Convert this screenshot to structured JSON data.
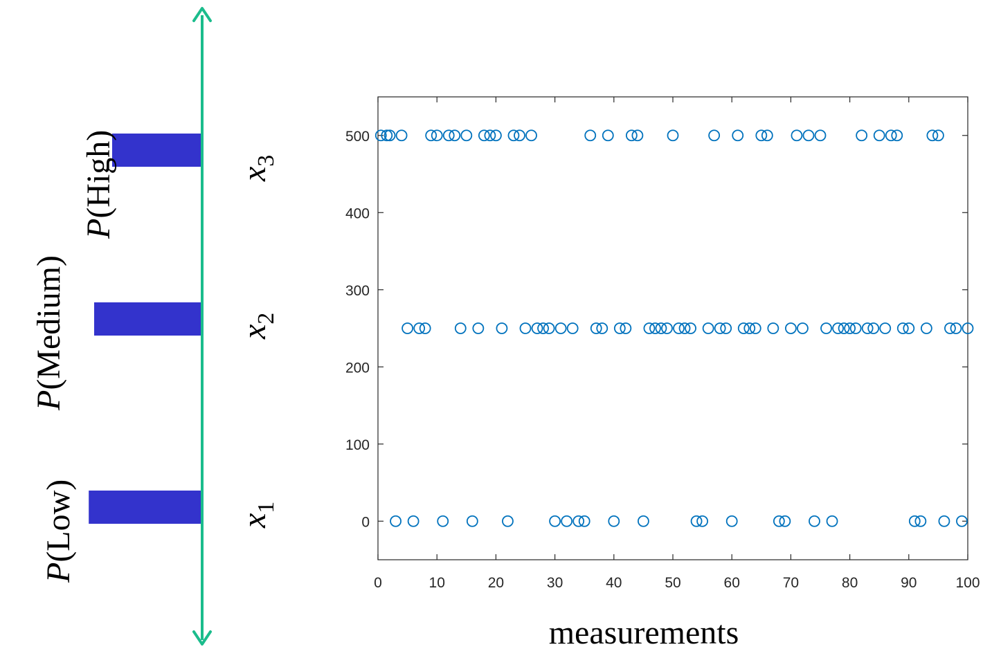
{
  "diagram": {
    "axis_color": "#1bbc8c",
    "bar_color": "#3333cc",
    "bars": [
      {
        "prob_label_prefix": "P",
        "prob_label_suffix": "(High)",
        "state_var": "x",
        "state_sub": "3",
        "probability": 0.5
      },
      {
        "prob_label_prefix": "P",
        "prob_label_suffix": "(Medium)",
        "state_var": "x",
        "state_sub": "2",
        "probability": 0.6
      },
      {
        "prob_label_prefix": "P",
        "prob_label_suffix": "(Low)",
        "state_var": "x",
        "state_sub": "1",
        "probability": 0.63
      }
    ]
  },
  "chart_data": {
    "type": "scatter",
    "title": "",
    "xlabel": "measurements",
    "ylabel": "",
    "xlim": [
      0,
      100
    ],
    "ylim": [
      -50,
      550
    ],
    "xticks": [
      0,
      10,
      20,
      30,
      40,
      50,
      60,
      70,
      80,
      90,
      100
    ],
    "yticks": [
      0,
      100,
      200,
      300,
      400,
      500
    ],
    "marker": "circle-open",
    "color": "#0072bd",
    "series": [
      {
        "y_value": 500,
        "x": [
          0.5,
          1.5,
          2,
          4,
          9,
          10,
          12,
          13,
          15,
          18,
          19,
          20,
          23,
          24,
          26,
          36,
          39,
          43,
          44,
          50,
          57,
          61,
          65,
          66,
          71,
          73,
          75,
          82,
          85,
          87,
          88,
          94,
          95
        ]
      },
      {
        "y_value": 250,
        "x": [
          5,
          7,
          8,
          14,
          17,
          21,
          25,
          27,
          28,
          29,
          31,
          33,
          37,
          38,
          41,
          42,
          46,
          47,
          48,
          49,
          51,
          52,
          53,
          56,
          58,
          59,
          62,
          63,
          64,
          67,
          70,
          72,
          76,
          78,
          79,
          80,
          81,
          83,
          84,
          86,
          89,
          90,
          93,
          97,
          98,
          100
        ]
      },
      {
        "y_value": 0,
        "x": [
          3,
          6,
          11,
          16,
          22,
          30,
          32,
          34,
          35,
          40,
          45,
          54,
          55,
          60,
          68,
          69,
          74,
          77,
          91,
          92,
          96,
          99
        ]
      }
    ]
  }
}
